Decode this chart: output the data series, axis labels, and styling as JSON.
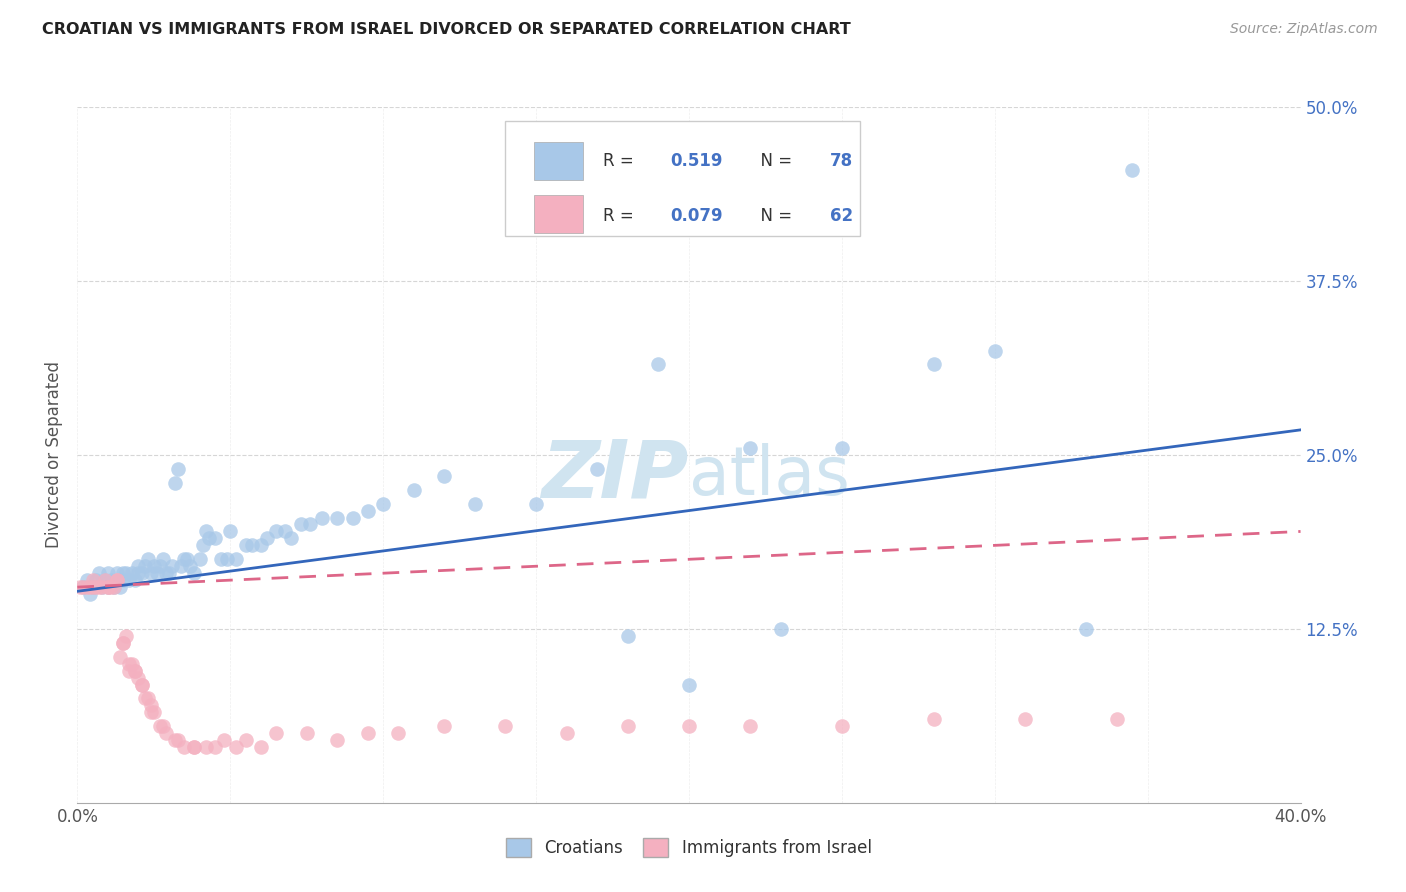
{
  "title": "CROATIAN VS IMMIGRANTS FROM ISRAEL DIVORCED OR SEPARATED CORRELATION CHART",
  "source": "Source: ZipAtlas.com",
  "ylabel": "Divorced or Separated",
  "xlabel_croatians": "Croatians",
  "xlabel_immigrants": "Immigrants from Israel",
  "xlim": [
    0.0,
    0.4
  ],
  "ylim": [
    0.0,
    0.5
  ],
  "xticks": [
    0.0,
    0.05,
    0.1,
    0.15,
    0.2,
    0.25,
    0.3,
    0.35,
    0.4
  ],
  "yticks": [
    0.125,
    0.25,
    0.375,
    0.5
  ],
  "ytick_labels": [
    "12.5%",
    "25.0%",
    "37.5%",
    "50.0%"
  ],
  "xtick_labels": [
    "0.0%",
    "",
    "",
    "",
    "",
    "",
    "",
    "",
    "40.0%"
  ],
  "blue_R": 0.519,
  "blue_N": 78,
  "pink_R": 0.079,
  "pink_N": 62,
  "blue_color": "#a8c8e8",
  "pink_color": "#f4b0c0",
  "trend_blue_color": "#3366bb",
  "trend_pink_color": "#dd6688",
  "watermark_color": "#d0e4f0",
  "background_color": "#ffffff",
  "blue_scatter_x": [
    0.002,
    0.003,
    0.004,
    0.005,
    0.006,
    0.007,
    0.008,
    0.009,
    0.01,
    0.01,
    0.011,
    0.012,
    0.013,
    0.014,
    0.015,
    0.015,
    0.016,
    0.017,
    0.018,
    0.019,
    0.02,
    0.02,
    0.021,
    0.022,
    0.023,
    0.024,
    0.025,
    0.026,
    0.027,
    0.028,
    0.029,
    0.03,
    0.031,
    0.032,
    0.033,
    0.034,
    0.035,
    0.036,
    0.037,
    0.038,
    0.04,
    0.041,
    0.042,
    0.043,
    0.045,
    0.047,
    0.049,
    0.05,
    0.052,
    0.055,
    0.057,
    0.06,
    0.062,
    0.065,
    0.068,
    0.07,
    0.073,
    0.076,
    0.08,
    0.085,
    0.09,
    0.095,
    0.1,
    0.11,
    0.12,
    0.13,
    0.15,
    0.17,
    0.19,
    0.22,
    0.25,
    0.28,
    0.3,
    0.33,
    0.2,
    0.23,
    0.345,
    0.18
  ],
  "blue_scatter_y": [
    0.155,
    0.16,
    0.15,
    0.155,
    0.16,
    0.165,
    0.155,
    0.16,
    0.155,
    0.165,
    0.16,
    0.155,
    0.165,
    0.155,
    0.16,
    0.165,
    0.165,
    0.16,
    0.165,
    0.16,
    0.165,
    0.17,
    0.165,
    0.17,
    0.175,
    0.165,
    0.17,
    0.165,
    0.17,
    0.175,
    0.165,
    0.165,
    0.17,
    0.23,
    0.24,
    0.17,
    0.175,
    0.175,
    0.17,
    0.165,
    0.175,
    0.185,
    0.195,
    0.19,
    0.19,
    0.175,
    0.175,
    0.195,
    0.175,
    0.185,
    0.185,
    0.185,
    0.19,
    0.195,
    0.195,
    0.19,
    0.2,
    0.2,
    0.205,
    0.205,
    0.205,
    0.21,
    0.215,
    0.225,
    0.235,
    0.215,
    0.215,
    0.24,
    0.315,
    0.255,
    0.255,
    0.315,
    0.325,
    0.125,
    0.085,
    0.125,
    0.455,
    0.12
  ],
  "pink_scatter_x": [
    0.001,
    0.002,
    0.003,
    0.004,
    0.005,
    0.005,
    0.006,
    0.007,
    0.008,
    0.009,
    0.01,
    0.01,
    0.011,
    0.012,
    0.013,
    0.014,
    0.015,
    0.016,
    0.017,
    0.018,
    0.019,
    0.02,
    0.021,
    0.022,
    0.023,
    0.024,
    0.025,
    0.027,
    0.029,
    0.032,
    0.035,
    0.038,
    0.042,
    0.048,
    0.055,
    0.065,
    0.075,
    0.085,
    0.095,
    0.105,
    0.12,
    0.14,
    0.16,
    0.18,
    0.2,
    0.22,
    0.25,
    0.28,
    0.31,
    0.34,
    0.013,
    0.015,
    0.017,
    0.019,
    0.021,
    0.024,
    0.028,
    0.033,
    0.038,
    0.045,
    0.052,
    0.06
  ],
  "pink_scatter_y": [
    0.155,
    0.155,
    0.155,
    0.155,
    0.16,
    0.155,
    0.155,
    0.155,
    0.155,
    0.16,
    0.155,
    0.155,
    0.155,
    0.155,
    0.16,
    0.105,
    0.115,
    0.12,
    0.095,
    0.1,
    0.095,
    0.09,
    0.085,
    0.075,
    0.075,
    0.065,
    0.065,
    0.055,
    0.05,
    0.045,
    0.04,
    0.04,
    0.04,
    0.045,
    0.045,
    0.05,
    0.05,
    0.045,
    0.05,
    0.05,
    0.055,
    0.055,
    0.05,
    0.055,
    0.055,
    0.055,
    0.055,
    0.06,
    0.06,
    0.06,
    0.16,
    0.115,
    0.1,
    0.095,
    0.085,
    0.07,
    0.055,
    0.045,
    0.04,
    0.04,
    0.04,
    0.04
  ],
  "trend_blue_x0": 0.0,
  "trend_blue_x1": 0.4,
  "trend_blue_y0": 0.152,
  "trend_blue_y1": 0.268,
  "trend_pink_x0": 0.0,
  "trend_pink_x1": 0.4,
  "trend_pink_y0": 0.155,
  "trend_pink_y1": 0.195
}
